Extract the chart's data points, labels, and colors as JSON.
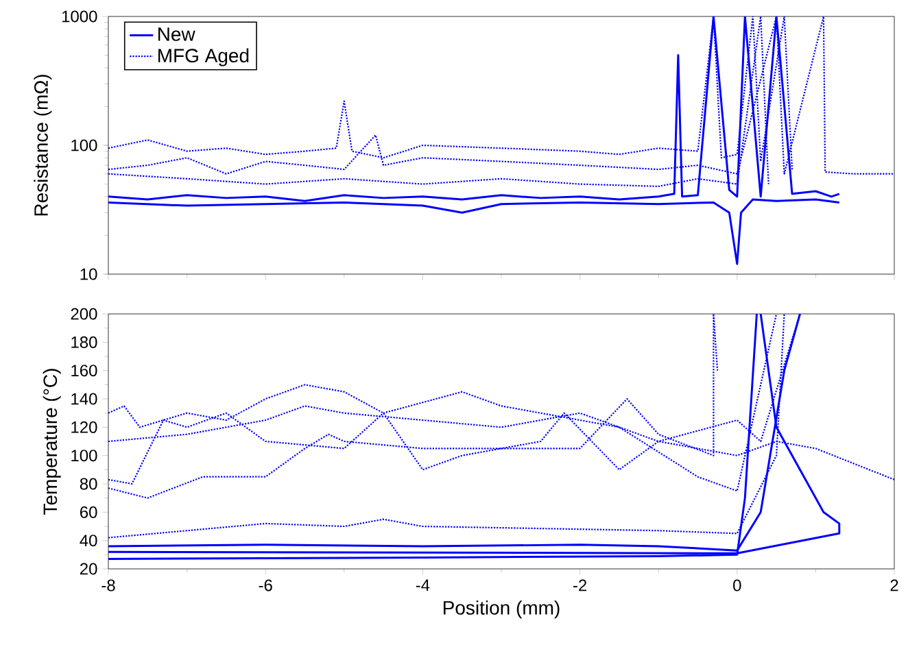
{
  "chart_data": [
    {
      "type": "line",
      "ylabel": "Resistance (mΩ)",
      "log": true,
      "xlim": [
        -8,
        2
      ],
      "ylim": [
        10,
        1000
      ],
      "xticks": [
        -8,
        -6,
        -4,
        -2,
        0,
        2
      ],
      "yticks": [
        10,
        100,
        1000
      ],
      "tick_labels": "y",
      "legend": "top left",
      "series": [
        {
          "name": "New",
          "color": "#0000ff",
          "line_style": "solid",
          "x": [
            -8,
            -7.5,
            -7,
            -6.5,
            -6,
            -5.5,
            -5,
            -4.5,
            -4,
            -3.5,
            -3,
            -2.5,
            -2,
            -1.5,
            -1,
            -0.8,
            -0.75,
            -0.7,
            -0.5,
            -0.3,
            -0.1,
            0,
            0.1,
            0.3,
            0.5,
            0.7,
            1,
            1.2,
            1.3
          ],
          "values": [
            40,
            38,
            41,
            39,
            40,
            37,
            41,
            39,
            40,
            38,
            41,
            39,
            40,
            38,
            40,
            42,
            500,
            40,
            41,
            1000,
            45,
            40,
            1000,
            40,
            1000,
            42,
            44,
            40,
            42
          ]
        },
        {
          "color": "#0000ff",
          "line_style": "solid",
          "x": [
            -8,
            -7,
            -6,
            -5,
            -4,
            -3.5,
            -3,
            -2,
            -1,
            -0.3,
            -0.1,
            0,
            0.05,
            0.2,
            0.5,
            1,
            1.3
          ],
          "values": [
            36,
            34,
            35,
            36,
            34,
            30,
            35,
            36,
            35,
            36,
            30,
            12,
            30,
            38,
            37,
            38,
            36
          ]
        },
        {
          "name": "MFG Aged",
          "color": "#0000ff",
          "line_style": "dotted",
          "x": [
            -8,
            -7.5,
            -7,
            -6.5,
            -6,
            -5.5,
            -5.1,
            -5,
            -4.9,
            -4.5,
            -4,
            -3,
            -2,
            -1.5,
            -1,
            -0.5,
            -0.3,
            -0.2,
            0,
            0.2,
            0.3,
            0.6,
            0.7
          ],
          "values": [
            95,
            110,
            90,
            95,
            85,
            90,
            95,
            220,
            90,
            80,
            100,
            95,
            90,
            85,
            95,
            90,
            1000,
            80,
            85,
            1000,
            75,
            1000,
            65
          ]
        },
        {
          "color": "#0000ff",
          "line_style": "dotted",
          "x": [
            -8,
            -7.5,
            -7,
            -6.5,
            -6,
            -5.5,
            -5,
            -4.6,
            -4.5,
            -4,
            -3,
            -2,
            -1,
            -0.5,
            0,
            0.5,
            0.6,
            1.1,
            1.12,
            1.5,
            2
          ],
          "values": [
            65,
            70,
            80,
            60,
            75,
            70,
            65,
            120,
            70,
            80,
            75,
            70,
            65,
            70,
            60,
            1000,
            60,
            1000,
            62,
            60,
            60
          ]
        },
        {
          "color": "#0000ff",
          "line_style": "dotted",
          "x": [
            -8,
            -7,
            -6,
            -5,
            -4,
            -3,
            -2,
            -1,
            -0.5,
            0,
            0.3,
            0.4
          ],
          "values": [
            60,
            55,
            50,
            55,
            50,
            55,
            50,
            48,
            55,
            50,
            1000,
            50
          ]
        }
      ]
    },
    {
      "type": "line",
      "xlabel": "Position (mm)",
      "ylabel": "Temperature (°C)",
      "xlim": [
        -8,
        2
      ],
      "ylim": [
        20,
        200
      ],
      "xticks": [
        -8,
        -6,
        -4,
        -2,
        0,
        2
      ],
      "yticks": [
        20,
        40,
        60,
        80,
        100,
        120,
        140,
        160,
        180,
        200
      ],
      "series": [
        {
          "color": "#0000ff",
          "line_style": "solid",
          "x": [
            -8,
            -4,
            -1,
            0,
            0.1,
            0.25
          ],
          "values": [
            27,
            28,
            29,
            30,
            70,
            200
          ]
        },
        {
          "color": "#0000ff",
          "line_style": "solid",
          "x": [
            -8,
            -6,
            -4,
            -2,
            -1,
            0,
            0.3,
            0.6,
            0.8
          ],
          "values": [
            36,
            37,
            36,
            37,
            36,
            33,
            60,
            160,
            200
          ]
        },
        {
          "color": "#0000ff",
          "line_style": "solid",
          "x": [
            -8,
            0,
            1.3,
            1.3,
            1.1,
            0.5,
            0.3
          ],
          "values": [
            32,
            31,
            45,
            52,
            60,
            120,
            200
          ]
        },
        {
          "color": "#0000ff",
          "line_style": "dotted",
          "x": [
            -8,
            -7.8,
            -7.6,
            -7,
            -6.5,
            -6,
            -5.5,
            -5,
            -4.5,
            -4,
            -3.5,
            -3,
            -2.5,
            -2.2,
            -1.5,
            -1,
            0,
            0.3,
            0.8
          ],
          "values": [
            130,
            135,
            120,
            130,
            125,
            140,
            150,
            145,
            130,
            90,
            100,
            105,
            110,
            130,
            90,
            110,
            125,
            110,
            200
          ]
        },
        {
          "color": "#0000ff",
          "line_style": "dotted",
          "x": [
            -8,
            -7,
            -6,
            -5.5,
            -5,
            -4,
            -3,
            -2,
            -1,
            0,
            0.5,
            1,
            2
          ],
          "values": [
            110,
            115,
            125,
            135,
            130,
            125,
            120,
            130,
            110,
            100,
            110,
            105,
            83
          ]
        },
        {
          "color": "#0000ff",
          "line_style": "dotted",
          "x": [
            -8,
            -7.7,
            -7.3,
            -7,
            -6.5,
            -6,
            -5,
            -4.5,
            -3.5,
            -3,
            -2,
            -1.5,
            -0.5,
            0,
            0.5
          ],
          "values": [
            83,
            80,
            125,
            120,
            130,
            110,
            105,
            130,
            145,
            135,
            125,
            120,
            85,
            75,
            200
          ]
        },
        {
          "color": "#0000ff",
          "line_style": "dotted",
          "x": [
            -8,
            -7.5,
            -6.8,
            -6,
            -5.5,
            -5.2,
            -5,
            -4,
            -3,
            -2,
            -1.4,
            -1,
            -0.3,
            -0.3,
            -0.25
          ],
          "values": [
            77,
            70,
            85,
            85,
            105,
            115,
            110,
            105,
            105,
            105,
            140,
            115,
            100,
            200,
            160
          ]
        },
        {
          "color": "#0000ff",
          "line_style": "dotted",
          "x": [
            -8,
            -6,
            -5,
            -4.5,
            -4,
            -2,
            -1,
            0,
            0.5,
            0.6
          ],
          "values": [
            42,
            52,
            50,
            55,
            50,
            48,
            47,
            45,
            100,
            200
          ]
        }
      ]
    }
  ]
}
